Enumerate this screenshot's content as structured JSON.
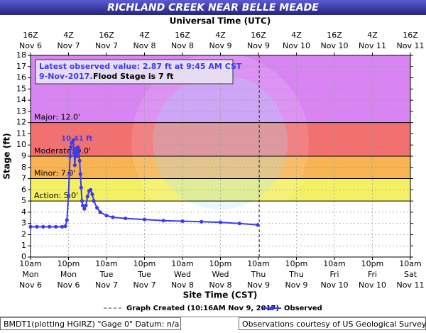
{
  "chart_data": {
    "type": "line",
    "title": "RICHLAND CREEK NEAR BELLE MEADE",
    "x2_label": "Universal Time (UTC)",
    "x_label": "Site Time (CST)",
    "y_label": "Stage (ft)",
    "ylim": [
      0,
      18
    ],
    "yticks": [
      0,
      1,
      2,
      3,
      4,
      5,
      6,
      7,
      8,
      9,
      10,
      11,
      12,
      13,
      14,
      15,
      16,
      17,
      18
    ],
    "grid": true,
    "xlim": [
      "2017-11-06T10:00",
      "2017-11-11T10:00"
    ],
    "xticks": [
      {
        "value": "2017-11-06T10:00",
        "label": [
          "10am",
          "Mon",
          "Nov 6"
        ]
      },
      {
        "value": "2017-11-06T22:00",
        "label": [
          "10pm",
          "Mon",
          "Nov 6"
        ]
      },
      {
        "value": "2017-11-07T10:00",
        "label": [
          "10am",
          "Tue",
          "Nov 7"
        ]
      },
      {
        "value": "2017-11-07T22:00",
        "label": [
          "10pm",
          "Tue",
          "Nov 7"
        ]
      },
      {
        "value": "2017-11-08T10:00",
        "label": [
          "10am",
          "Wed",
          "Nov 8"
        ]
      },
      {
        "value": "2017-11-08T22:00",
        "label": [
          "10pm",
          "Wed",
          "Nov 8"
        ]
      },
      {
        "value": "2017-11-09T10:00",
        "label": [
          "10am",
          "Thu",
          "Nov 9"
        ]
      },
      {
        "value": "2017-11-09T22:00",
        "label": [
          "10pm",
          "Thu",
          "Nov 9"
        ]
      },
      {
        "value": "2017-11-10T10:00",
        "label": [
          "10am",
          "Fri",
          "Nov 10"
        ]
      },
      {
        "value": "2017-11-10T22:00",
        "label": [
          "10pm",
          "Fri",
          "Nov 10"
        ]
      },
      {
        "value": "2017-11-11T10:00",
        "label": [
          "10am",
          "Sat",
          "Nov 11"
        ]
      }
    ],
    "x2ticks": [
      {
        "value": "2017-11-06T10:00",
        "label": [
          "16Z",
          "Nov 6"
        ]
      },
      {
        "value": "2017-11-06T22:00",
        "label": [
          "4Z",
          "Nov 7"
        ]
      },
      {
        "value": "2017-11-07T10:00",
        "label": [
          "16Z",
          "Nov 7"
        ]
      },
      {
        "value": "2017-11-07T22:00",
        "label": [
          "4Z",
          "Nov 8"
        ]
      },
      {
        "value": "2017-11-08T10:00",
        "label": [
          "16Z",
          "Nov 8"
        ]
      },
      {
        "value": "2017-11-08T22:00",
        "label": [
          "4Z",
          "Nov 9"
        ]
      },
      {
        "value": "2017-11-09T10:00",
        "label": [
          "16Z",
          "Nov 9"
        ]
      },
      {
        "value": "2017-11-09T22:00",
        "label": [
          "4Z",
          "Nov 10"
        ]
      },
      {
        "value": "2017-11-10T10:00",
        "label": [
          "16Z",
          "Nov 10"
        ]
      },
      {
        "value": "2017-11-10T22:00",
        "label": [
          "4Z",
          "Nov 11"
        ]
      },
      {
        "value": "2017-11-11T10:00",
        "label": [
          "16Z",
          "Nov 11"
        ]
      }
    ],
    "flood_categories": [
      {
        "name": "Action: 5.0'",
        "value": 5,
        "color": "#f4f064"
      },
      {
        "name": "Minor: 7.0'",
        "value": 7,
        "color": "#f8b452"
      },
      {
        "name": "Moderate: 9.0'",
        "value": 9,
        "color": "#f27070"
      },
      {
        "name": "Major: 12.0'",
        "value": 12,
        "color": "#d884f2"
      }
    ],
    "annotations": [
      {
        "text": "10.41 ft",
        "x": "2017-11-06T23:30",
        "y": 10.41
      }
    ],
    "info_box": [
      "Latest observed value: 2.87 ft at 9:45 AM CST",
      "9-Nov-2017.",
      "Flood Stage is 7 ft"
    ],
    "created": {
      "name": "Graph Created (10:16AM Nov 9, 2017)",
      "x": "2017-11-09T10:16"
    },
    "series": [
      {
        "name": "Observed",
        "color": "#3b3bef",
        "x": [
          "2017-11-06T10:00",
          "2017-11-06T12:00",
          "2017-11-06T14:00",
          "2017-11-06T16:00",
          "2017-11-06T18:00",
          "2017-11-06T20:00",
          "2017-11-06T21:00",
          "2017-11-06T21:30",
          "2017-11-06T22:00",
          "2017-11-06T22:15",
          "2017-11-06T22:30",
          "2017-11-06T22:45",
          "2017-11-06T23:00",
          "2017-11-06T23:30",
          "2017-11-06T23:45",
          "2017-11-07T00:00",
          "2017-11-07T00:15",
          "2017-11-07T00:30",
          "2017-11-07T00:45",
          "2017-11-07T01:00",
          "2017-11-07T01:15",
          "2017-11-07T01:30",
          "2017-11-07T01:45",
          "2017-11-07T02:00",
          "2017-11-07T02:15",
          "2017-11-07T02:30",
          "2017-11-07T03:00",
          "2017-11-07T03:30",
          "2017-11-07T04:00",
          "2017-11-07T04:30",
          "2017-11-07T05:00",
          "2017-11-07T05:30",
          "2017-11-07T06:00",
          "2017-11-07T07:00",
          "2017-11-07T08:00",
          "2017-11-07T10:00",
          "2017-11-07T12:00",
          "2017-11-07T16:00",
          "2017-11-07T22:00",
          "2017-11-08T04:00",
          "2017-11-08T10:00",
          "2017-11-08T16:00",
          "2017-11-08T22:00",
          "2017-11-09T04:00",
          "2017-11-09T09:45"
        ],
        "values": [
          2.7,
          2.7,
          2.7,
          2.7,
          2.7,
          2.7,
          2.75,
          3.3,
          5.5,
          7.5,
          9.0,
          9.8,
          10.2,
          10.41,
          9.3,
          8.2,
          9.4,
          9.7,
          9.0,
          9.8,
          9.6,
          8.6,
          7.4,
          6.2,
          5.0,
          4.6,
          4.3,
          4.6,
          5.4,
          5.9,
          6.0,
          5.6,
          5.0,
          4.4,
          4.0,
          3.7,
          3.55,
          3.45,
          3.35,
          3.25,
          3.2,
          3.15,
          3.1,
          3.0,
          2.87
        ]
      }
    ],
    "footer": [
      "BMDT1(plotting HGIRZ) \"Gage 0\" Datum: n/a",
      "Observations courtesy of US Geological Survey"
    ]
  }
}
